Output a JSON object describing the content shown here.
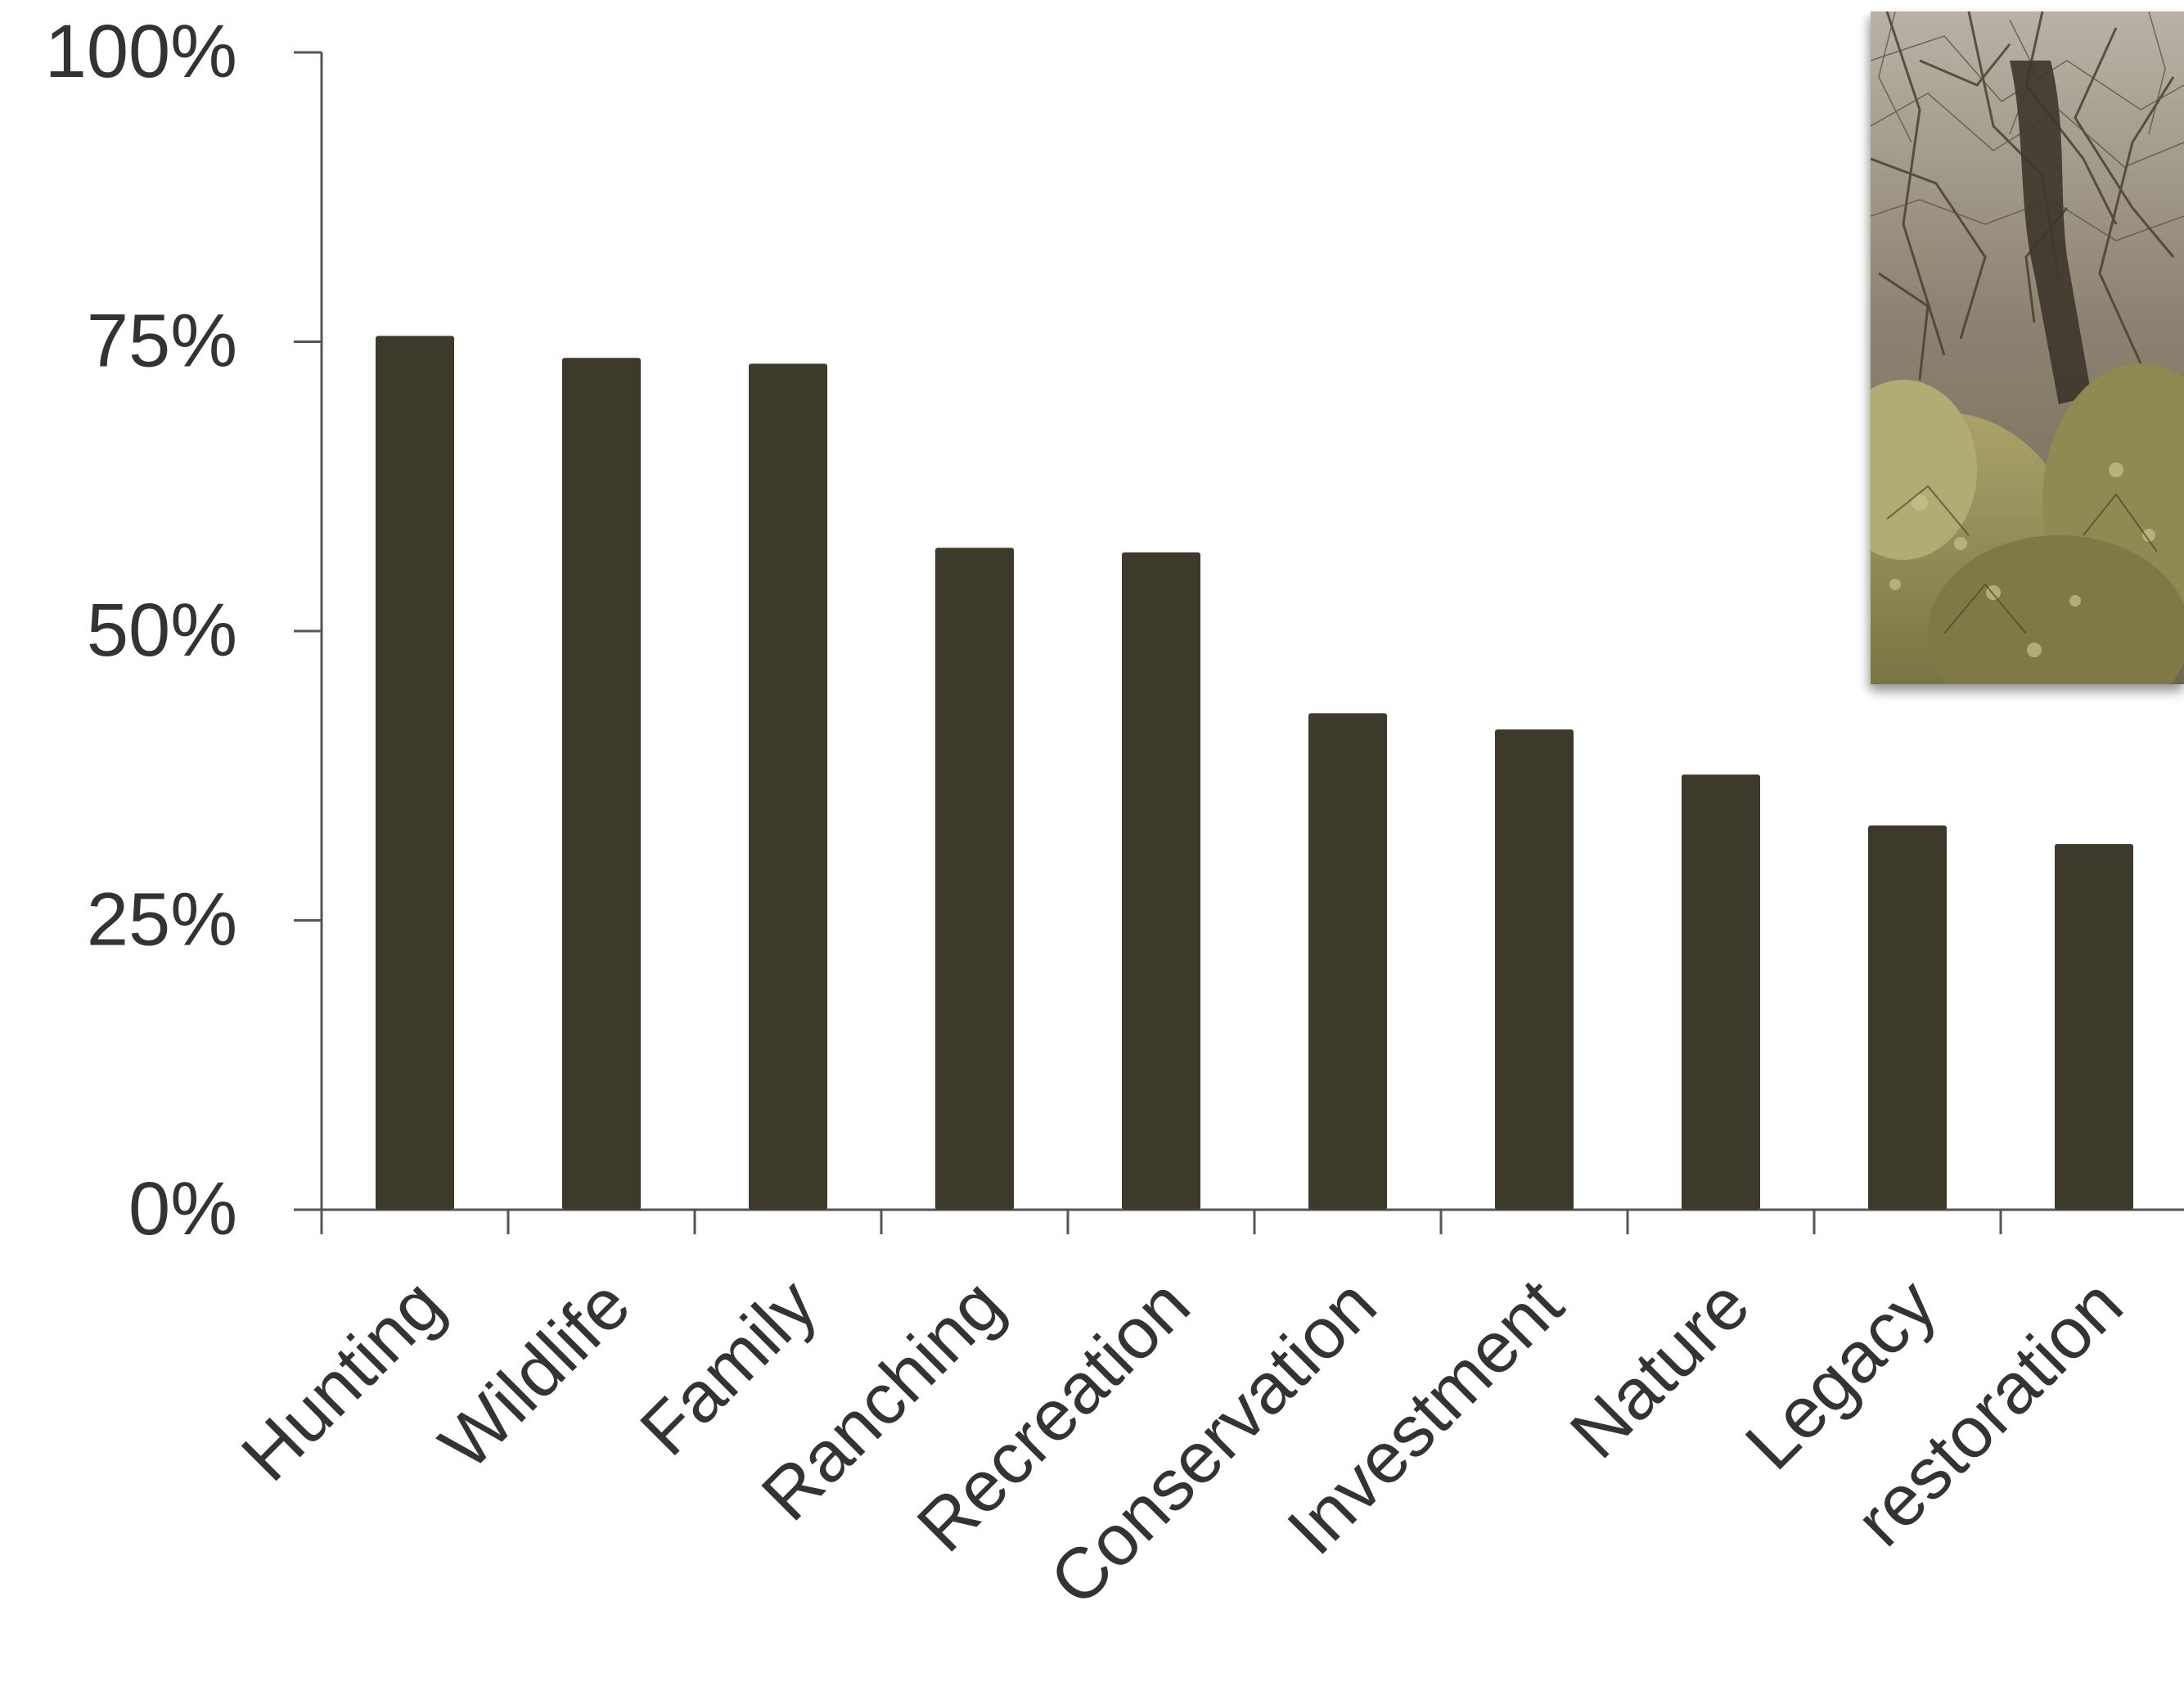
{
  "chart_data": {
    "type": "bar",
    "categories": [
      "Hunting",
      "Wildlife",
      "Family",
      "Ranching",
      "Recreation",
      "Conservation",
      "Investment",
      "Nature",
      "Legacy",
      "restoration"
    ],
    "values": [
      75.5,
      73.6,
      73.1,
      57.2,
      56.8,
      42.9,
      41.5,
      37.6,
      33.2,
      31.6
    ],
    "ylim": [
      0,
      100
    ],
    "yticks": [
      "0%",
      "25%",
      "50%",
      "75%",
      "100%"
    ],
    "ytick_values": [
      0,
      25,
      50,
      75,
      100
    ],
    "title": "",
    "xlabel": "",
    "ylabel": "",
    "grid": false,
    "bar_color": "#3d3a2b",
    "axis_color": "#555555",
    "text_color": "#333333"
  },
  "inset_image": {
    "name": "thorny-shrubland-photo"
  }
}
